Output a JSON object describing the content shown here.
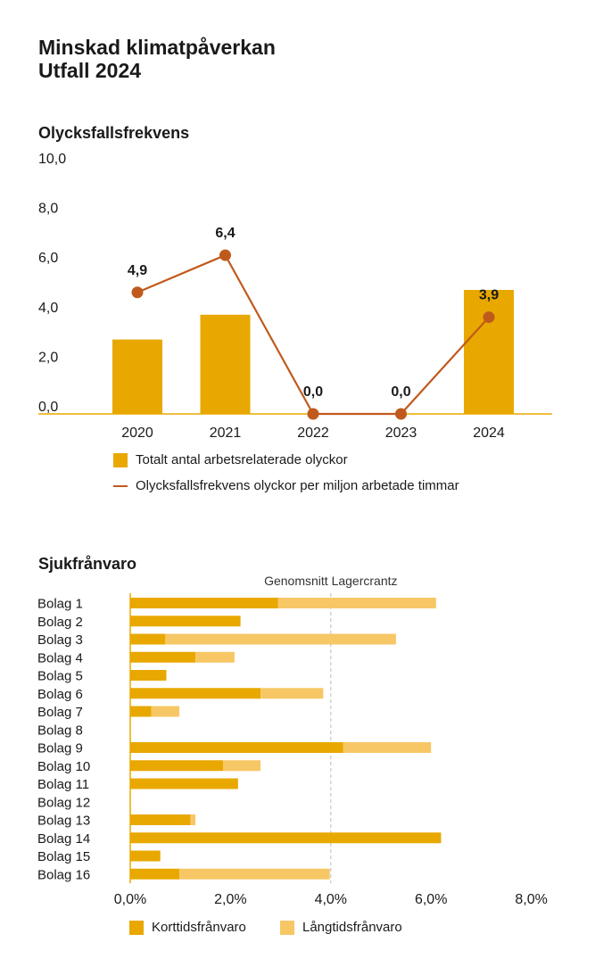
{
  "page": {
    "title_line1": "Minskad klimatpåverkan",
    "title_line2": "Utfall 2024"
  },
  "colors": {
    "bar": "#E8A800",
    "bar_light": "#F7C766",
    "line": "#C05A1C",
    "axis": "#E8A800",
    "grid_dashed": "#BBBBBB"
  },
  "chart_data": [
    {
      "type": "bar",
      "title": "Olycksfallsfrekvens",
      "categories": [
        "2020",
        "2021",
        "2022",
        "2023",
        "2024"
      ],
      "ylim": [
        0,
        10
      ],
      "yticks": [
        "0,0",
        "2,0",
        "4,0",
        "6,0",
        "8,0",
        "10,0"
      ],
      "series": [
        {
          "name": "Totalt antal arbetsrelaterade olyckor",
          "kind": "bar",
          "values": [
            3,
            4,
            0,
            0,
            5
          ]
        },
        {
          "name": "Olycksfallsfrekvens olyckor per miljon arbetade timmar",
          "kind": "line",
          "values": [
            4.9,
            6.4,
            0.0,
            0.0,
            3.9
          ],
          "labels": [
            "4,9",
            "6,4",
            "0,0",
            "0,0",
            "3,9"
          ]
        }
      ],
      "grid": false,
      "legend_position": "bottom"
    },
    {
      "type": "bar",
      "orientation": "horizontal",
      "stacked": true,
      "title": "Sjukfrånvaro",
      "categories": [
        "Bolag 1",
        "Bolag 2",
        "Bolag 3",
        "Bolag 4",
        "Bolag 5",
        "Bolag 6",
        "Bolag 7",
        "Bolag 8",
        "Bolag 9",
        "Bolag 10",
        "Bolag 11",
        "Bolag 12",
        "Bolag 13",
        "Bolag 14",
        "Bolag 15",
        "Bolag 16"
      ],
      "xlim": [
        0,
        8
      ],
      "xticks": [
        "0,0%",
        "2,0%",
        "4,0%",
        "6,0%",
        "8,0%"
      ],
      "series": [
        {
          "name": "Korttidsfrånvaro",
          "values": [
            2.95,
            2.2,
            0.7,
            1.3,
            0.72,
            2.6,
            0.42,
            0,
            4.25,
            1.85,
            2.15,
            0,
            1.2,
            6.2,
            0.6,
            0.98
          ]
        },
        {
          "name": "Långtidsfrånvaro",
          "values": [
            3.15,
            0,
            4.6,
            0.78,
            0,
            1.25,
            0.56,
            0,
            1.75,
            0.75,
            0,
            0,
            0.1,
            0,
            0,
            3.0
          ]
        }
      ],
      "reference_line": {
        "label": "Genomsnitt Lagercrantz",
        "value": 4.0
      },
      "legend_position": "bottom"
    }
  ]
}
